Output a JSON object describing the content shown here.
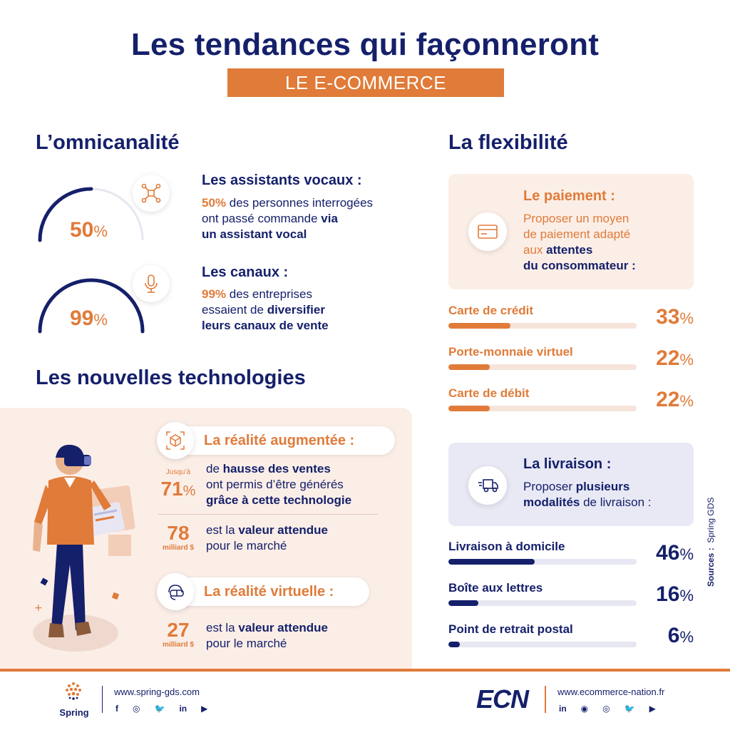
{
  "header": {
    "title": "Les tendances qui façonneront",
    "subtitle": "LE E-COMMERCE"
  },
  "omni": {
    "heading": "L’omnicanalité",
    "items": [
      {
        "value": 50,
        "value_text": "50",
        "pct": "%",
        "icon": "network-icon",
        "title": "Les assistants vocaux :",
        "l1a": "50%",
        "l1b": " des personnes interrogées",
        "l2a": "ont passé commande ",
        "l2b": "via",
        "l3": "un assistant vocal"
      },
      {
        "value": 99,
        "value_text": "99",
        "pct": "%",
        "icon": "microphone-icon",
        "title": "Les canaux :",
        "l1a": "99%",
        "l1b": " des entreprises",
        "l2a": "essaient de ",
        "l2b": "diversifier",
        "l3": "leurs canaux de vente"
      }
    ]
  },
  "tech": {
    "heading": "Les nouvelles technologies",
    "ar": {
      "title": "La réalité augmentée :",
      "icon": "ar-cube-icon",
      "stat1_prefix": "Jusqu’à",
      "stat1_num": "71",
      "stat1_pct": "%",
      "stat1_l1a": "de ",
      "stat1_l1b": "hausse des ventes",
      "stat1_l2": "ont permis d’être générés",
      "stat1_l3": "grâce à cette technologie",
      "stat2_num": "78",
      "stat2_unit": "milliard $",
      "stat2_l1a": "est la ",
      "stat2_l1b": "valeur attendue",
      "stat2_l2": "pour le marché"
    },
    "vr": {
      "title": "La réalité virtuelle :",
      "icon": "vr-headset-icon",
      "stat_num": "27",
      "stat_unit": "milliard $",
      "l1a": "est la ",
      "l1b": "valeur attendue",
      "l2": "pour le marché"
    }
  },
  "flex": {
    "heading": "La flexibilité",
    "payment": {
      "title": "Le paiement :",
      "icon": "credit-card-icon",
      "l1": "Proposer un moyen",
      "l2": "de paiement adapté",
      "l3a": "aux ",
      "l3b": "attentes",
      "l4": "du consommateur :",
      "bars": [
        {
          "label": "Carte de crédit",
          "value": 33,
          "value_text": "33",
          "pct": "%"
        },
        {
          "label": "Porte-monnaie virtuel",
          "value": 22,
          "value_text": "22",
          "pct": "%"
        },
        {
          "label": "Carte de débit",
          "value": 22,
          "value_text": "22",
          "pct": "%"
        }
      ]
    },
    "delivery": {
      "title": "La livraison :",
      "icon": "delivery-truck-icon",
      "l1a": "Proposer ",
      "l1b": "plusieurs",
      "l2a": "modalités",
      "l2b": " de livraison :",
      "bars": [
        {
          "label": "Livraison à domicile",
          "value": 46,
          "value_text": "46",
          "pct": "%"
        },
        {
          "label": "Boîte aux lettres",
          "value": 16,
          "value_text": "16",
          "pct": "%"
        },
        {
          "label": "Point de retrait postal",
          "value": 6,
          "value_text": "6",
          "pct": "%"
        }
      ]
    }
  },
  "sources": {
    "label": "Sources :",
    "value": "Spring GDS"
  },
  "footer": {
    "spring_name": "Spring",
    "spring_url": "www.spring-gds.com",
    "ecn_logo": "ECN",
    "ecn_url": "www.ecommerce-nation.fr",
    "spring_social": [
      "f",
      "◎",
      "🐦",
      "in",
      "▶"
    ],
    "ecn_social": [
      "in",
      "◉",
      "◎",
      "🐦",
      "▶"
    ]
  },
  "colors": {
    "navy": "#15206b",
    "orange": "#e07b39",
    "pink": "#fbeee7",
    "lavender": "#e8e9f4"
  }
}
